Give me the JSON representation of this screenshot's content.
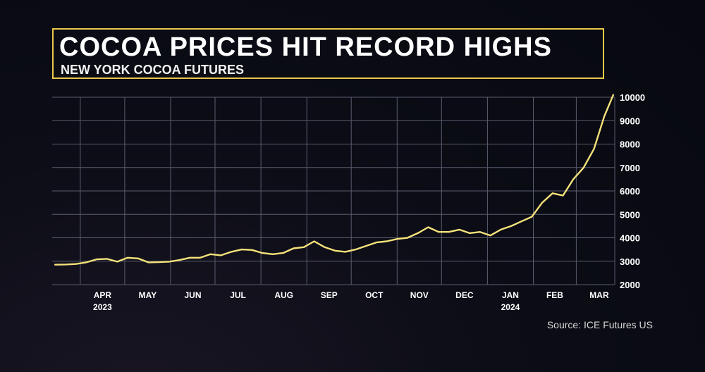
{
  "title": "COCOA PRICES HIT RECORD HIGHS",
  "subtitle": "NEW YORK COCOA FUTURES",
  "source": "Source: ICE Futures US",
  "colors": {
    "accent": "#e8c84a",
    "line": "#f5e27a",
    "grid": "#5a5d6e"
  },
  "chart_data": {
    "type": "line",
    "title": "COCOA PRICES HIT RECORD HIGHS",
    "subtitle": "NEW YORK COCOA FUTURES",
    "x_ticks": [
      {
        "label": "APR",
        "sub": "2023"
      },
      {
        "label": "MAY",
        "sub": ""
      },
      {
        "label": "JUN",
        "sub": ""
      },
      {
        "label": "JUL",
        "sub": ""
      },
      {
        "label": "AUG",
        "sub": ""
      },
      {
        "label": "SEP",
        "sub": ""
      },
      {
        "label": "OCT",
        "sub": ""
      },
      {
        "label": "NOV",
        "sub": ""
      },
      {
        "label": "DEC",
        "sub": ""
      },
      {
        "label": "JAN",
        "sub": "2024"
      },
      {
        "label": "FEB",
        "sub": ""
      },
      {
        "label": "MAR",
        "sub": ""
      }
    ],
    "y_ticks": [
      2000,
      3000,
      4000,
      5000,
      6000,
      7000,
      8000,
      9000,
      10000
    ],
    "ylim": [
      2000,
      10000
    ],
    "grid": true,
    "y_axis_position": "right",
    "series": [
      {
        "x": [
          "2023-03-15",
          "2023-03-22",
          "2023-03-29",
          "2023-04-05",
          "2023-04-12",
          "2023-04-19",
          "2023-04-26",
          "2023-05-03",
          "2023-05-10",
          "2023-05-17",
          "2023-05-24",
          "2023-05-31",
          "2023-06-07",
          "2023-06-14",
          "2023-06-21",
          "2023-06-28",
          "2023-07-05",
          "2023-07-12",
          "2023-07-19",
          "2023-07-26",
          "2023-08-02",
          "2023-08-09",
          "2023-08-16",
          "2023-08-23",
          "2023-08-30",
          "2023-09-06",
          "2023-09-13",
          "2023-09-20",
          "2023-09-27",
          "2023-10-04",
          "2023-10-11",
          "2023-10-18",
          "2023-10-25",
          "2023-11-01",
          "2023-11-08",
          "2023-11-15",
          "2023-11-22",
          "2023-11-29",
          "2023-12-06",
          "2023-12-13",
          "2023-12-20",
          "2023-12-27",
          "2024-01-03",
          "2024-01-10",
          "2024-01-17",
          "2024-01-24",
          "2024-01-31",
          "2024-02-07",
          "2024-02-14",
          "2024-02-21",
          "2024-02-28",
          "2024-03-06",
          "2024-03-13",
          "2024-03-20",
          "2024-03-26"
        ],
        "values": [
          2850,
          2860,
          2880,
          2950,
          3080,
          3100,
          2980,
          3150,
          3120,
          2950,
          2960,
          2980,
          3050,
          3150,
          3150,
          3300,
          3250,
          3400,
          3500,
          3480,
          3350,
          3300,
          3350,
          3550,
          3600,
          3850,
          3600,
          3450,
          3400,
          3500,
          3650,
          3800,
          3850,
          3950,
          4000,
          4200,
          4450,
          4250,
          4250,
          4350,
          4200,
          4250,
          4100,
          4350,
          4500,
          4700,
          4900,
          5500,
          5900,
          5800,
          6500,
          7000,
          7800,
          9200,
          10100
        ]
      }
    ]
  }
}
